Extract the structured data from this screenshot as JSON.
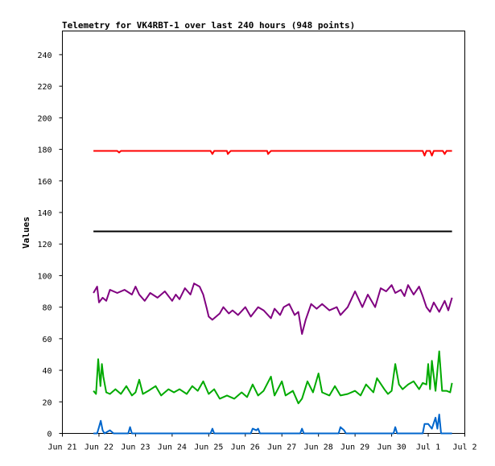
{
  "chart_data": {
    "type": "line",
    "title": "Telemetry for VK4RBT-1 over last 240 hours (948 points)",
    "xlabel": "",
    "ylabel": "Values",
    "ylim": [
      0,
      255
    ],
    "yticks": [
      0,
      20,
      40,
      60,
      80,
      100,
      120,
      140,
      160,
      180,
      200,
      220,
      240
    ],
    "xlim": [
      0,
      11
    ],
    "xticks": [
      {
        "x": 0,
        "label": "Jun 21"
      },
      {
        "x": 1,
        "label": "Jun 22"
      },
      {
        "x": 2,
        "label": "Jun 23"
      },
      {
        "x": 3,
        "label": "Jun 24"
      },
      {
        "x": 4,
        "label": "Jun 25"
      },
      {
        "x": 5,
        "label": "Jun 26"
      },
      {
        "x": 6,
        "label": "Jun 27"
      },
      {
        "x": 7,
        "label": "Jun 28"
      },
      {
        "x": 8,
        "label": "Jun 29"
      },
      {
        "x": 9,
        "label": "Jun 30"
      },
      {
        "x": 10,
        "label": "Jul 1"
      },
      {
        "x": 11,
        "label": "Jul 2"
      }
    ],
    "grid": false,
    "legend": "none",
    "series": [
      {
        "color": "#ff0000",
        "points": [
          [
            0.85,
            179
          ],
          [
            1.5,
            179
          ],
          [
            1.55,
            178
          ],
          [
            1.6,
            179
          ],
          [
            4.05,
            179
          ],
          [
            4.1,
            177
          ],
          [
            4.15,
            179
          ],
          [
            4.5,
            179
          ],
          [
            4.52,
            177
          ],
          [
            4.6,
            179
          ],
          [
            5.6,
            179
          ],
          [
            5.62,
            177
          ],
          [
            5.7,
            179
          ],
          [
            9.85,
            179
          ],
          [
            9.9,
            176
          ],
          [
            9.95,
            179
          ],
          [
            10.05,
            179
          ],
          [
            10.1,
            176
          ],
          [
            10.15,
            179
          ],
          [
            10.4,
            179
          ],
          [
            10.45,
            177
          ],
          [
            10.5,
            179
          ],
          [
            10.65,
            179
          ]
        ]
      },
      {
        "color": "#000000",
        "points": [
          [
            0.85,
            128
          ],
          [
            10.65,
            128
          ]
        ]
      },
      {
        "color": "#800080",
        "points": [
          [
            0.85,
            89
          ],
          [
            0.95,
            93
          ],
          [
            1.0,
            83
          ],
          [
            1.1,
            86
          ],
          [
            1.2,
            84
          ],
          [
            1.3,
            91
          ],
          [
            1.5,
            89
          ],
          [
            1.7,
            91
          ],
          [
            1.9,
            88
          ],
          [
            2.0,
            93
          ],
          [
            2.1,
            88
          ],
          [
            2.25,
            84
          ],
          [
            2.4,
            89
          ],
          [
            2.6,
            86
          ],
          [
            2.8,
            90
          ],
          [
            3.0,
            84
          ],
          [
            3.1,
            88
          ],
          [
            3.2,
            85
          ],
          [
            3.35,
            92
          ],
          [
            3.5,
            88
          ],
          [
            3.6,
            95
          ],
          [
            3.75,
            93
          ],
          [
            3.85,
            88
          ],
          [
            3.95,
            79
          ],
          [
            4.0,
            74
          ],
          [
            4.1,
            72
          ],
          [
            4.3,
            76
          ],
          [
            4.4,
            80
          ],
          [
            4.55,
            76
          ],
          [
            4.65,
            78
          ],
          [
            4.8,
            75
          ],
          [
            5.0,
            80
          ],
          [
            5.15,
            74
          ],
          [
            5.35,
            80
          ],
          [
            5.5,
            78
          ],
          [
            5.7,
            73
          ],
          [
            5.8,
            79
          ],
          [
            5.95,
            75
          ],
          [
            6.05,
            80
          ],
          [
            6.2,
            82
          ],
          [
            6.35,
            75
          ],
          [
            6.45,
            77
          ],
          [
            6.55,
            63
          ],
          [
            6.65,
            72
          ],
          [
            6.8,
            82
          ],
          [
            6.95,
            79
          ],
          [
            7.1,
            82
          ],
          [
            7.3,
            78
          ],
          [
            7.5,
            80
          ],
          [
            7.6,
            75
          ],
          [
            7.8,
            80
          ],
          [
            8.0,
            90
          ],
          [
            8.1,
            85
          ],
          [
            8.2,
            80
          ],
          [
            8.35,
            88
          ],
          [
            8.55,
            80
          ],
          [
            8.7,
            92
          ],
          [
            8.85,
            90
          ],
          [
            9.0,
            94
          ],
          [
            9.1,
            89
          ],
          [
            9.25,
            91
          ],
          [
            9.35,
            87
          ],
          [
            9.45,
            94
          ],
          [
            9.6,
            88
          ],
          [
            9.75,
            93
          ],
          [
            9.85,
            87
          ],
          [
            9.95,
            80
          ],
          [
            10.05,
            77
          ],
          [
            10.15,
            83
          ],
          [
            10.3,
            77
          ],
          [
            10.45,
            84
          ],
          [
            10.55,
            78
          ],
          [
            10.65,
            86
          ]
        ]
      },
      {
        "color": "#00aa00",
        "points": [
          [
            0.85,
            27
          ],
          [
            0.92,
            25
          ],
          [
            0.98,
            47
          ],
          [
            1.04,
            30
          ],
          [
            1.08,
            44
          ],
          [
            1.12,
            36
          ],
          [
            1.2,
            26
          ],
          [
            1.3,
            25
          ],
          [
            1.45,
            28
          ],
          [
            1.6,
            25
          ],
          [
            1.75,
            30
          ],
          [
            1.9,
            24
          ],
          [
            2.0,
            26
          ],
          [
            2.1,
            34
          ],
          [
            2.2,
            25
          ],
          [
            2.35,
            27
          ],
          [
            2.55,
            30
          ],
          [
            2.7,
            24
          ],
          [
            2.9,
            28
          ],
          [
            3.05,
            26
          ],
          [
            3.2,
            28
          ],
          [
            3.4,
            25
          ],
          [
            3.55,
            30
          ],
          [
            3.7,
            27
          ],
          [
            3.85,
            33
          ],
          [
            4.0,
            25
          ],
          [
            4.15,
            28
          ],
          [
            4.3,
            22
          ],
          [
            4.5,
            24
          ],
          [
            4.7,
            22
          ],
          [
            4.9,
            26
          ],
          [
            5.05,
            23
          ],
          [
            5.2,
            31
          ],
          [
            5.35,
            24
          ],
          [
            5.5,
            27
          ],
          [
            5.7,
            36
          ],
          [
            5.8,
            24
          ],
          [
            6.0,
            33
          ],
          [
            6.1,
            24
          ],
          [
            6.3,
            27
          ],
          [
            6.45,
            19
          ],
          [
            6.55,
            22
          ],
          [
            6.7,
            33
          ],
          [
            6.85,
            26
          ],
          [
            7.0,
            38
          ],
          [
            7.1,
            26
          ],
          [
            7.3,
            24
          ],
          [
            7.45,
            30
          ],
          [
            7.6,
            24
          ],
          [
            7.8,
            25
          ],
          [
            8.0,
            27
          ],
          [
            8.15,
            24
          ],
          [
            8.3,
            31
          ],
          [
            8.5,
            26
          ],
          [
            8.6,
            35
          ],
          [
            8.8,
            28
          ],
          [
            8.9,
            25
          ],
          [
            9.0,
            27
          ],
          [
            9.05,
            36
          ],
          [
            9.1,
            44
          ],
          [
            9.2,
            31
          ],
          [
            9.3,
            28
          ],
          [
            9.45,
            31
          ],
          [
            9.6,
            33
          ],
          [
            9.75,
            28
          ],
          [
            9.85,
            32
          ],
          [
            9.95,
            31
          ],
          [
            10.0,
            44
          ],
          [
            10.05,
            28
          ],
          [
            10.1,
            46
          ],
          [
            10.2,
            27
          ],
          [
            10.3,
            52
          ],
          [
            10.38,
            27
          ],
          [
            10.5,
            27
          ],
          [
            10.6,
            26
          ],
          [
            10.65,
            32
          ]
        ]
      },
      {
        "color": "#0066cc",
        "points": [
          [
            0.85,
            0
          ],
          [
            0.95,
            0
          ],
          [
            1.0,
            4
          ],
          [
            1.05,
            8
          ],
          [
            1.1,
            2
          ],
          [
            1.15,
            0
          ],
          [
            1.3,
            2
          ],
          [
            1.4,
            0
          ],
          [
            1.8,
            0
          ],
          [
            1.85,
            4
          ],
          [
            1.9,
            0
          ],
          [
            4.05,
            0
          ],
          [
            4.1,
            3
          ],
          [
            4.15,
            0
          ],
          [
            5.15,
            0
          ],
          [
            5.2,
            3
          ],
          [
            5.3,
            2
          ],
          [
            5.35,
            3
          ],
          [
            5.4,
            0
          ],
          [
            6.5,
            0
          ],
          [
            6.55,
            3
          ],
          [
            6.6,
            0
          ],
          [
            7.55,
            0
          ],
          [
            7.6,
            4
          ],
          [
            7.7,
            2
          ],
          [
            7.75,
            0
          ],
          [
            9.05,
            0
          ],
          [
            9.1,
            4
          ],
          [
            9.15,
            0
          ],
          [
            9.85,
            0
          ],
          [
            9.9,
            6
          ],
          [
            10.0,
            6
          ],
          [
            10.1,
            3
          ],
          [
            10.2,
            10
          ],
          [
            10.25,
            3
          ],
          [
            10.3,
            12
          ],
          [
            10.35,
            0
          ],
          [
            10.65,
            0
          ]
        ]
      }
    ]
  }
}
